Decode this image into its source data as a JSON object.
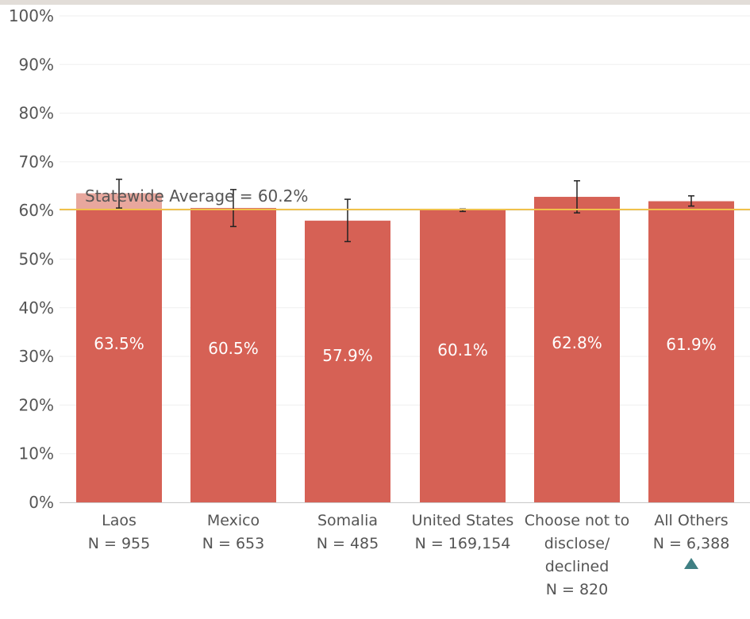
{
  "chart_data": {
    "type": "bar",
    "ylim": [
      0,
      100
    ],
    "yticks": [
      "0%",
      "10%",
      "20%",
      "30%",
      "40%",
      "50%",
      "60%",
      "70%",
      "80%",
      "90%",
      "100%"
    ],
    "categories": [
      {
        "name": "Laos",
        "n_label": "N = 955",
        "value": 63.5,
        "value_label": "63.5%",
        "err_low": 60.5,
        "err_high": 66.4
      },
      {
        "name": "Mexico",
        "n_label": "N = 653",
        "value": 60.5,
        "value_label": "60.5%",
        "err_low": 56.7,
        "err_high": 64.3
      },
      {
        "name": "Somalia",
        "n_label": "N = 485",
        "value": 57.9,
        "value_label": "57.9%",
        "err_low": 53.6,
        "err_high": 62.3
      },
      {
        "name": "United States",
        "n_label": "N = 169,154",
        "value": 60.1,
        "value_label": "60.1%",
        "err_low": 59.8,
        "err_high": 60.3
      },
      {
        "name": "Choose not to disclose/ declined",
        "name_lines": [
          "Choose not to",
          "disclose/",
          "declined"
        ],
        "n_label": "N = 820",
        "value": 62.8,
        "value_label": "62.8%",
        "err_low": 59.5,
        "err_high": 66.1
      },
      {
        "name": "All Others",
        "n_label": "N = 6,388",
        "value": 61.9,
        "value_label": "61.9%",
        "err_low": 60.9,
        "err_high": 63.0,
        "marker": "triangle-up"
      }
    ],
    "reference_line": {
      "label": "Statewide Average = 60.2%",
      "value": 60.2,
      "color": "#f0c14b"
    },
    "colors": {
      "bar": "#d66155",
      "highlight_bar": "#e8a79d",
      "marker": "#3f7f83",
      "grid": "#efefef"
    },
    "grid": true
  }
}
